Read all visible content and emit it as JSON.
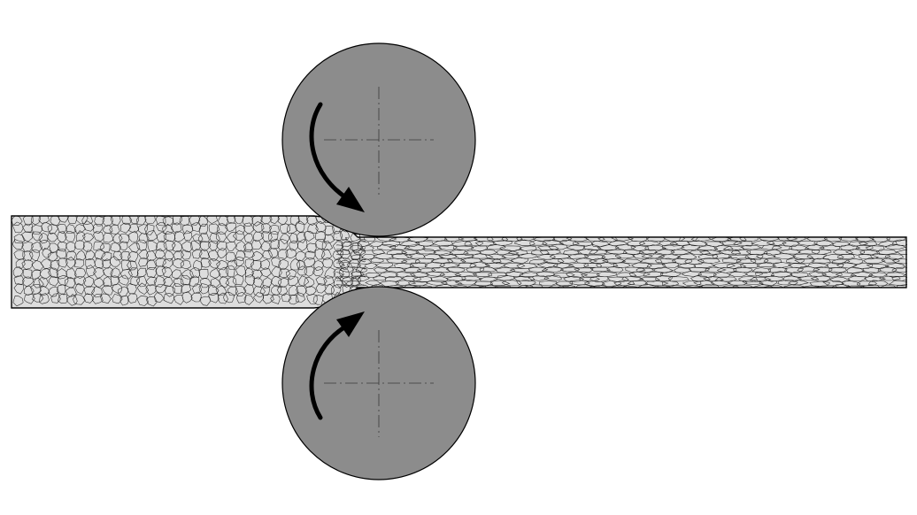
{
  "diagram": {
    "components": [
      {
        "id": "incoming-strip",
        "kind": "strip"
      },
      {
        "id": "rolled-strip",
        "kind": "strip"
      },
      {
        "id": "upper-roll",
        "kind": "roll",
        "rotation": "clockwise"
      },
      {
        "id": "lower-roll",
        "kind": "roll",
        "rotation": "counterclockwise"
      }
    ],
    "colors": {
      "strip": "#dddddd",
      "roll": "#8c8c8c",
      "outline": "#000000",
      "arrow": "#000000",
      "grain_boundary": "#222222"
    },
    "grain_structure": {
      "before_rolls": "equiaxed",
      "after_rolls": "elongated"
    }
  }
}
